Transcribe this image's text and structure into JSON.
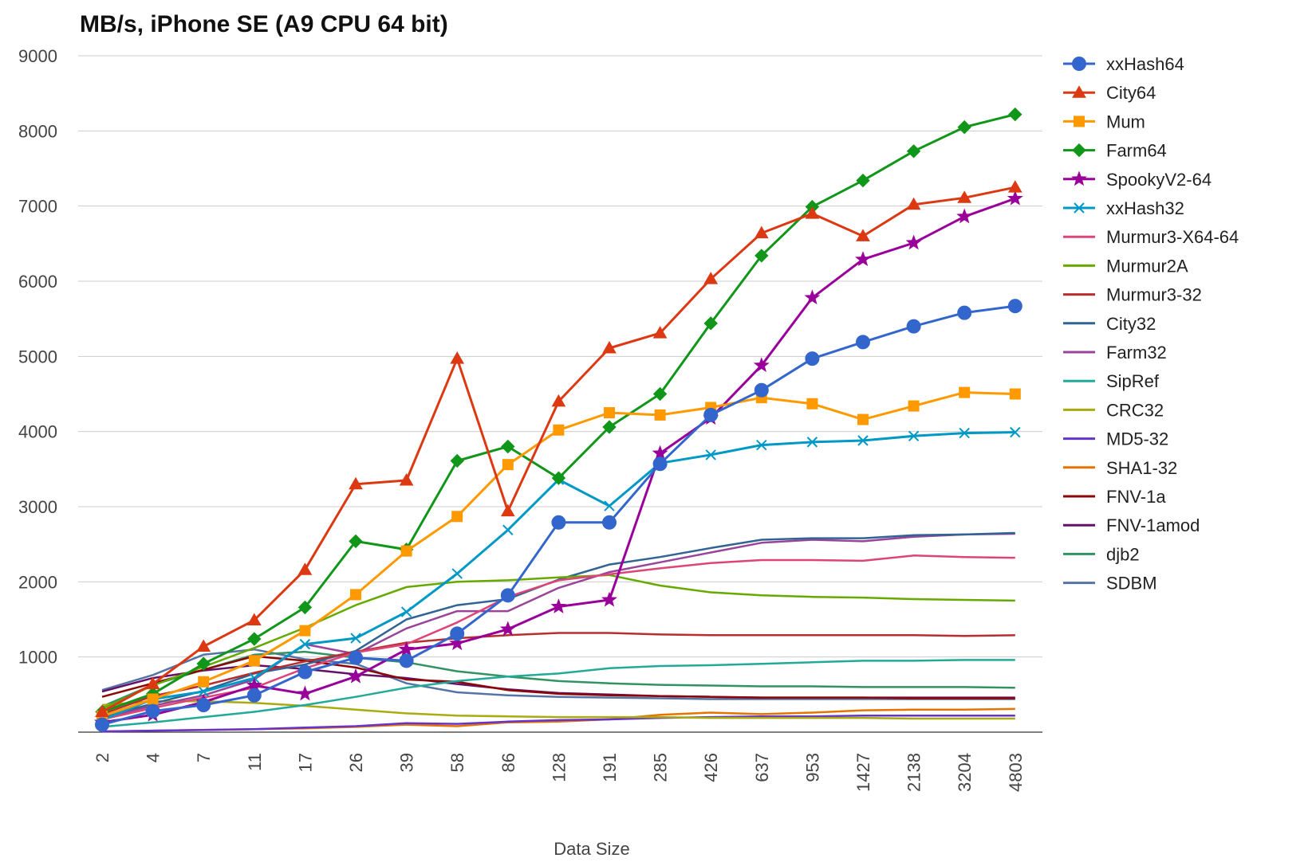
{
  "chart_data": {
    "type": "line",
    "title": "MB/s, iPhone SE (A9 CPU 64 bit)",
    "xlabel": "Data Size",
    "ylabel": "",
    "ylim": [
      0,
      9000
    ],
    "yticks": [
      1000,
      2000,
      3000,
      4000,
      5000,
      6000,
      7000,
      8000,
      9000
    ],
    "grid": true,
    "legend_position": "right",
    "categories": [
      "2",
      "4",
      "7",
      "11",
      "17",
      "26",
      "39",
      "58",
      "86",
      "128",
      "191",
      "285",
      "426",
      "637",
      "953",
      "1427",
      "2138",
      "3204",
      "4803"
    ],
    "series": [
      {
        "name": "xxHash64",
        "color": "#3366cc",
        "marker": "circle",
        "values": [
          100,
          280,
          360,
          490,
          800,
          990,
          950,
          1310,
          1820,
          2790,
          2790,
          3570,
          4220,
          4550,
          4970,
          5190,
          5400,
          5580,
          5670
        ]
      },
      {
        "name": "City64",
        "color": "#dc3912",
        "marker": "triangle",
        "values": [
          270,
          640,
          1140,
          1490,
          2160,
          3300,
          3350,
          4970,
          2940,
          4400,
          5110,
          5310,
          6030,
          6640,
          6900,
          6600,
          7020,
          7110,
          7250
        ]
      },
      {
        "name": "Mum",
        "color": "#ff9900",
        "marker": "square",
        "values": [
          210,
          440,
          670,
          950,
          1350,
          1830,
          2410,
          2870,
          3560,
          4020,
          4250,
          4220,
          4320,
          4450,
          4370,
          4160,
          4340,
          4520,
          4500
        ]
      },
      {
        "name": "Farm64",
        "color": "#109618",
        "marker": "diamond",
        "values": [
          270,
          510,
          910,
          1240,
          1660,
          2540,
          2430,
          3610,
          3800,
          3380,
          4060,
          4500,
          5440,
          6340,
          6990,
          7340,
          7730,
          8050,
          8220
        ]
      },
      {
        "name": "SpookyV2-64",
        "color": "#990099",
        "marker": "star",
        "values": [
          130,
          230,
          400,
          620,
          510,
          740,
          1100,
          1180,
          1370,
          1670,
          1760,
          3710,
          4180,
          4880,
          5780,
          6290,
          6510,
          6860,
          7100
        ]
      },
      {
        "name": "xxHash32",
        "color": "#0099c6",
        "marker": "x",
        "values": [
          160,
          440,
          540,
          720,
          1170,
          1250,
          1600,
          2110,
          2690,
          3360,
          3010,
          3580,
          3690,
          3820,
          3860,
          3880,
          3940,
          3980,
          3990
        ]
      },
      {
        "name": "Murmur3-X64-64",
        "color": "#dd4477",
        "marker": "none",
        "values": [
          170,
          320,
          460,
          590,
          850,
          1060,
          1170,
          1460,
          1800,
          2020,
          2100,
          2180,
          2250,
          2290,
          2290,
          2280,
          2350,
          2330,
          2320
        ]
      },
      {
        "name": "Murmur2A",
        "color": "#66aa00",
        "marker": "none",
        "values": [
          310,
          620,
          870,
          1120,
          1390,
          1690,
          1930,
          2000,
          2020,
          2060,
          2090,
          1950,
          1860,
          1820,
          1800,
          1790,
          1770,
          1760,
          1750
        ]
      },
      {
        "name": "Murmur3-32",
        "color": "#b82e2e",
        "marker": "none",
        "values": [
          240,
          480,
          620,
          790,
          940,
          1070,
          1190,
          1250,
          1290,
          1320,
          1320,
          1300,
          1290,
          1290,
          1290,
          1290,
          1290,
          1280,
          1290
        ]
      },
      {
        "name": "City32",
        "color": "#316395",
        "marker": "none",
        "values": [
          200,
          380,
          550,
          780,
          900,
          1080,
          1500,
          1690,
          1770,
          2030,
          2230,
          2330,
          2450,
          2560,
          2580,
          2580,
          2620,
          2630,
          2650
        ]
      },
      {
        "name": "Farm32",
        "color": "#994499",
        "marker": "none",
        "values": [
          190,
          350,
          490,
          700,
          1170,
          1040,
          1380,
          1610,
          1610,
          1920,
          2130,
          2260,
          2390,
          2520,
          2560,
          2540,
          2600,
          2630,
          2640
        ]
      },
      {
        "name": "SipRef",
        "color": "#22aa99",
        "marker": "none",
        "values": [
          70,
          130,
          200,
          270,
          360,
          470,
          590,
          680,
          740,
          780,
          850,
          880,
          890,
          910,
          930,
          950,
          950,
          960,
          960
        ]
      },
      {
        "name": "CRC32",
        "color": "#aaaa11",
        "marker": "none",
        "values": [
          360,
          410,
          410,
          390,
          350,
          300,
          250,
          220,
          210,
          200,
          200,
          200,
          190,
          190,
          190,
          190,
          180,
          180,
          180
        ]
      },
      {
        "name": "MD5-32",
        "color": "#6633cc",
        "marker": "none",
        "values": [
          10,
          20,
          30,
          40,
          60,
          80,
          120,
          110,
          140,
          160,
          170,
          190,
          200,
          210,
          210,
          220,
          220,
          220,
          220
        ]
      },
      {
        "name": "SHA1-32",
        "color": "#e67300",
        "marker": "none",
        "values": [
          10,
          20,
          30,
          40,
          50,
          70,
          100,
          80,
          130,
          140,
          170,
          230,
          260,
          240,
          260,
          290,
          300,
          300,
          310
        ]
      },
      {
        "name": "FNV-1a",
        "color": "#8b0707",
        "marker": "none",
        "values": [
          470,
          650,
          830,
          1010,
          950,
          860,
          700,
          670,
          560,
          510,
          490,
          480,
          470,
          460,
          460,
          460,
          450,
          450,
          450
        ]
      },
      {
        "name": "FNV-1amod",
        "color": "#651067",
        "marker": "none",
        "values": [
          540,
          720,
          820,
          890,
          840,
          770,
          720,
          640,
          570,
          520,
          500,
          480,
          470,
          460,
          460,
          460,
          460,
          460,
          460
        ]
      },
      {
        "name": "djb2",
        "color": "#329262",
        "marker": "none",
        "values": [
          340,
          630,
          830,
          1030,
          1070,
          990,
          930,
          810,
          740,
          680,
          650,
          630,
          620,
          610,
          610,
          600,
          600,
          600,
          590
        ]
      },
      {
        "name": "SDBM",
        "color": "#5574a6",
        "marker": "none",
        "values": [
          560,
          760,
          1030,
          1100,
          970,
          910,
          650,
          530,
          490,
          470,
          460,
          450,
          440,
          440,
          440,
          440,
          440,
          440,
          440
        ]
      }
    ]
  }
}
